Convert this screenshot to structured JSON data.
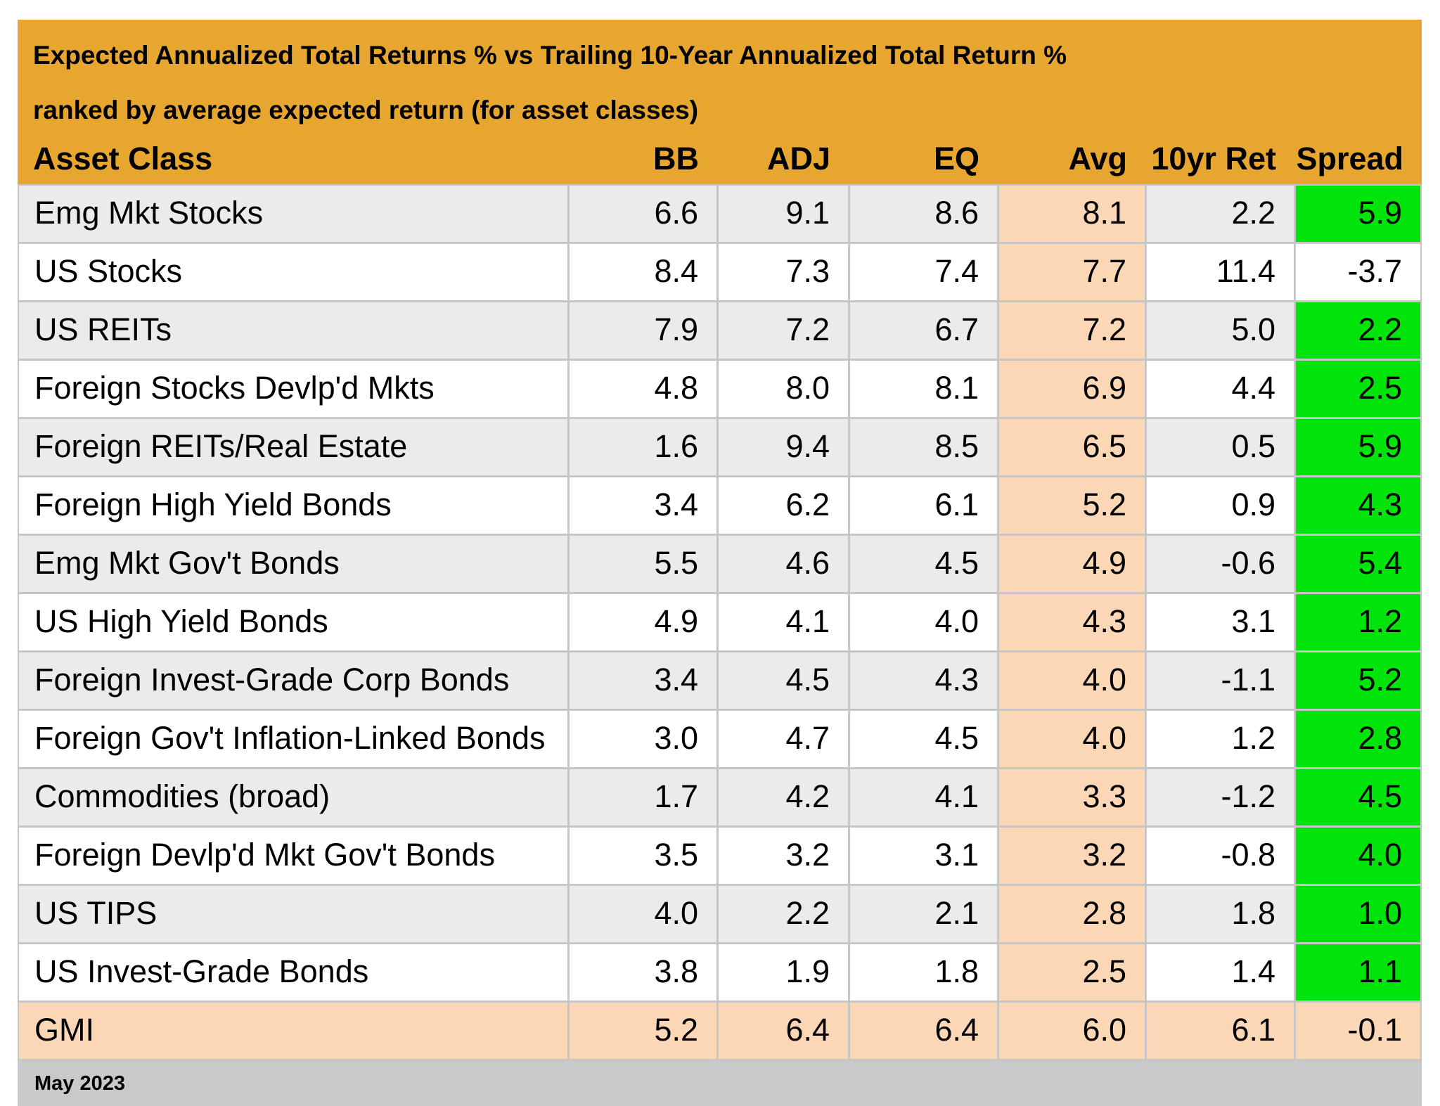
{
  "chart_data": {
    "type": "table",
    "title": "Expected Annualized Total Returns % vs Trailing 10-Year Annualized Total Return %",
    "subtitle": "ranked by average expected return (for asset classes)",
    "columns": [
      "Asset Class",
      "BB",
      "ADJ",
      "EQ",
      "Avg",
      "10yr Ret",
      "Spread"
    ],
    "rows": [
      {
        "name": "Emg Mkt Stocks",
        "bb": "6.6",
        "adj": "9.1",
        "eq": "8.6",
        "avg": "8.1",
        "ret10": "2.2",
        "spread": "5.9",
        "highlight": false
      },
      {
        "name": "US Stocks",
        "bb": "8.4",
        "adj": "7.3",
        "eq": "7.4",
        "avg": "7.7",
        "ret10": "11.4",
        "spread": "-3.7",
        "highlight": false
      },
      {
        "name": "US REITs",
        "bb": "7.9",
        "adj": "7.2",
        "eq": "6.7",
        "avg": "7.2",
        "ret10": "5.0",
        "spread": "2.2",
        "highlight": false
      },
      {
        "name": "Foreign Stocks Devlp'd Mkts",
        "bb": "4.8",
        "adj": "8.0",
        "eq": "8.1",
        "avg": "6.9",
        "ret10": "4.4",
        "spread": "2.5",
        "highlight": false
      },
      {
        "name": "Foreign REITs/Real Estate",
        "bb": "1.6",
        "adj": "9.4",
        "eq": "8.5",
        "avg": "6.5",
        "ret10": "0.5",
        "spread": "5.9",
        "highlight": false
      },
      {
        "name": "Foreign High Yield Bonds",
        "bb": "3.4",
        "adj": "6.2",
        "eq": "6.1",
        "avg": "5.2",
        "ret10": "0.9",
        "spread": "4.3",
        "highlight": false
      },
      {
        "name": "Emg Mkt Gov't Bonds",
        "bb": "5.5",
        "adj": "4.6",
        "eq": "4.5",
        "avg": "4.9",
        "ret10": "-0.6",
        "spread": "5.4",
        "highlight": false
      },
      {
        "name": "US High Yield Bonds",
        "bb": "4.9",
        "adj": "4.1",
        "eq": "4.0",
        "avg": "4.3",
        "ret10": "3.1",
        "spread": "1.2",
        "highlight": false
      },
      {
        "name": "Foreign Invest-Grade Corp Bonds",
        "bb": "3.4",
        "adj": "4.5",
        "eq": "4.3",
        "avg": "4.0",
        "ret10": "-1.1",
        "spread": "5.2",
        "highlight": false
      },
      {
        "name": "Foreign Gov't Inflation-Linked Bonds",
        "bb": "3.0",
        "adj": "4.7",
        "eq": "4.5",
        "avg": "4.0",
        "ret10": "1.2",
        "spread": "2.8",
        "highlight": false
      },
      {
        "name": "Commodities (broad)",
        "bb": "1.7",
        "adj": "4.2",
        "eq": "4.1",
        "avg": "3.3",
        "ret10": "-1.2",
        "spread": "4.5",
        "highlight": false
      },
      {
        "name": "Foreign Devlp'd Mkt Gov't Bonds",
        "bb": "3.5",
        "adj": "3.2",
        "eq": "3.1",
        "avg": "3.2",
        "ret10": "-0.8",
        "spread": "4.0",
        "highlight": false
      },
      {
        "name": "US TIPS",
        "bb": "4.0",
        "adj": "2.2",
        "eq": "2.1",
        "avg": "2.8",
        "ret10": "1.8",
        "spread": "1.0",
        "highlight": false
      },
      {
        "name": "US Invest-Grade Bonds",
        "bb": "3.8",
        "adj": "1.9",
        "eq": "1.8",
        "avg": "2.5",
        "ret10": "1.4",
        "spread": "1.1",
        "highlight": false
      },
      {
        "name": "GMI",
        "bb": "5.2",
        "adj": "6.4",
        "eq": "6.4",
        "avg": "6.0",
        "ret10": "6.1",
        "spread": "-0.1",
        "highlight": true
      }
    ],
    "footer": "May 2023",
    "layout": {
      "legend_position": "none",
      "grid": "on"
    }
  },
  "colors": {
    "header_gold": "#E6A62F",
    "avg_peach": "#FBD7B5",
    "spread_green": "#00E30B",
    "row_alt_gray": "#EBEBEB",
    "footer_gray": "#C9C9C9",
    "gridline": "#C6C6C6"
  }
}
